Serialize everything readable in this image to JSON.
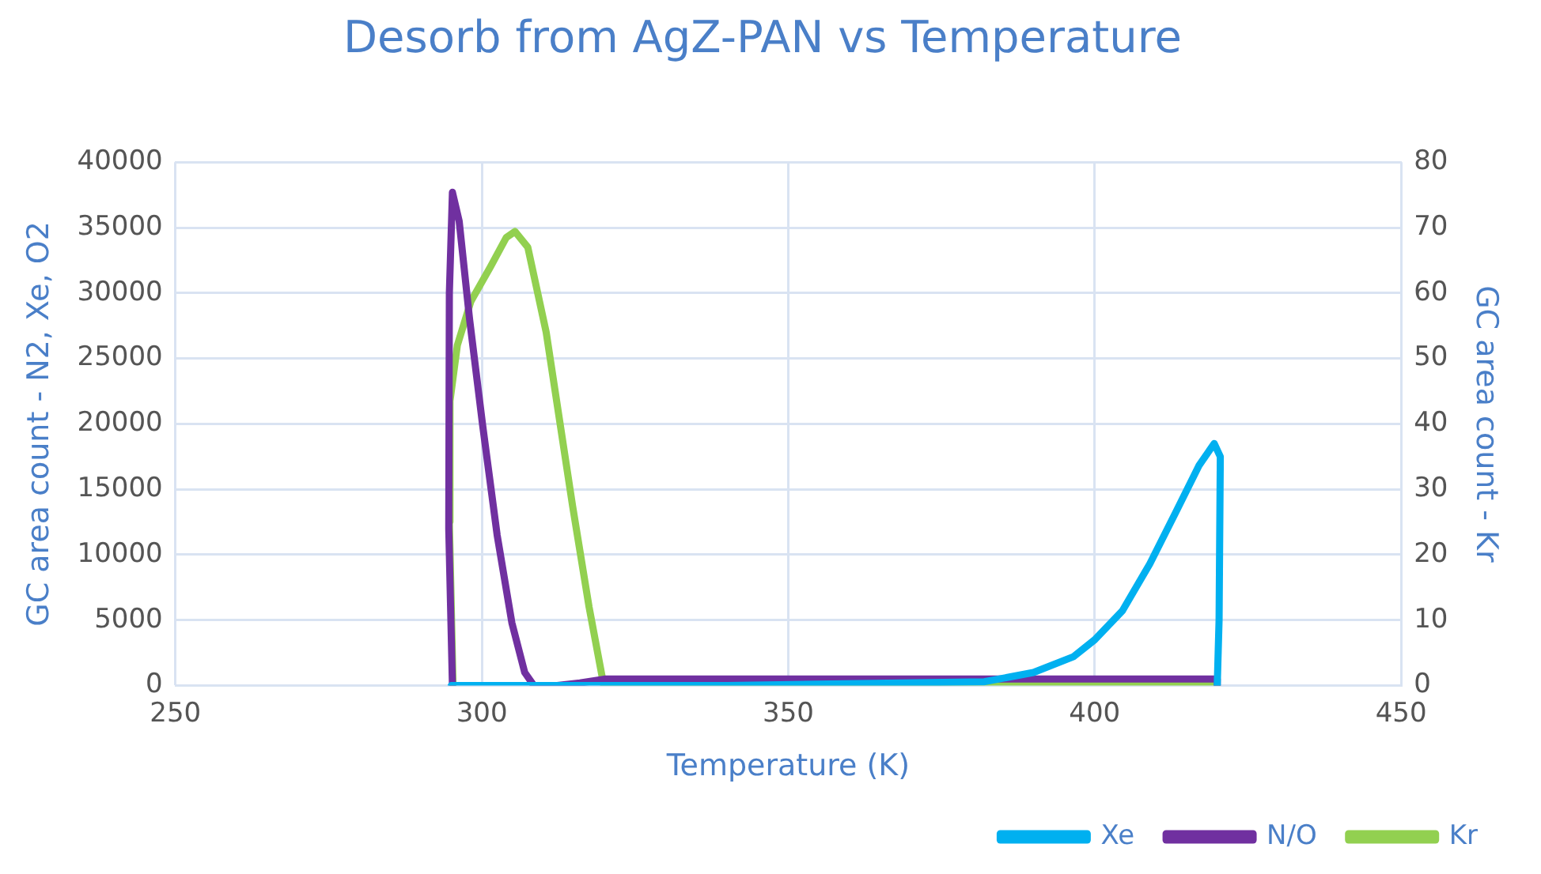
{
  "chart_data": {
    "type": "line",
    "title": "Desorb from AgZ-PAN vs Temperature",
    "xlabel": "Temperature (K)",
    "ylabel": "GC area count - N2, Xe, O2",
    "y2label": "GC area count - Kr",
    "xlim": [
      250,
      450
    ],
    "xticks": [
      250,
      300,
      350,
      400,
      450
    ],
    "ylim": [
      0,
      40000
    ],
    "yticks": [
      0,
      5000,
      10000,
      15000,
      20000,
      25000,
      30000,
      35000,
      40000
    ],
    "y2lim": [
      0,
      80
    ],
    "y2ticks": [
      0,
      10,
      20,
      30,
      40,
      50,
      60,
      70,
      80
    ],
    "grid": true,
    "legend": "bottom right",
    "marker": "none",
    "line_style": "solid",
    "series": [
      {
        "name": "Xe",
        "color": "#00b0f0",
        "x": [
          295,
          340,
          382,
          390,
          396.5,
          400,
          404.5,
          409,
          413.3,
          417,
          419.5,
          420.5,
          420.3,
          420
        ],
        "values": [
          0,
          0,
          300,
          1000,
          2200,
          3500,
          5700,
          9300,
          13300,
          16800,
          18500,
          17500,
          5000,
          0
        ]
      },
      {
        "name": "N/O",
        "color": "#7030a0",
        "x": [
          295.2,
          294.6,
          294.7,
          295.2,
          296.3,
          298,
          300.1,
          302.5,
          304.9,
          307,
          308.5,
          312,
          316,
          320,
          420,
          420
        ],
        "values": [
          0,
          12000,
          30000,
          37700,
          35500,
          28000,
          20000,
          11500,
          4800,
          1000,
          0,
          0,
          200,
          500,
          500,
          0
        ]
      },
      {
        "name": "Kr",
        "axis": "y2",
        "color": "#92d050",
        "x": [
          295.3,
          294.7,
          294.8,
          296,
          298.2,
          301.4,
          304,
          305.4,
          307.5,
          310.5,
          314.8,
          317.5,
          319.9,
          420
        ],
        "values": [
          0,
          25,
          43.5,
          52,
          58.7,
          64,
          68.5,
          69.4,
          67,
          54,
          27.5,
          12,
          0,
          0
        ]
      }
    ]
  }
}
